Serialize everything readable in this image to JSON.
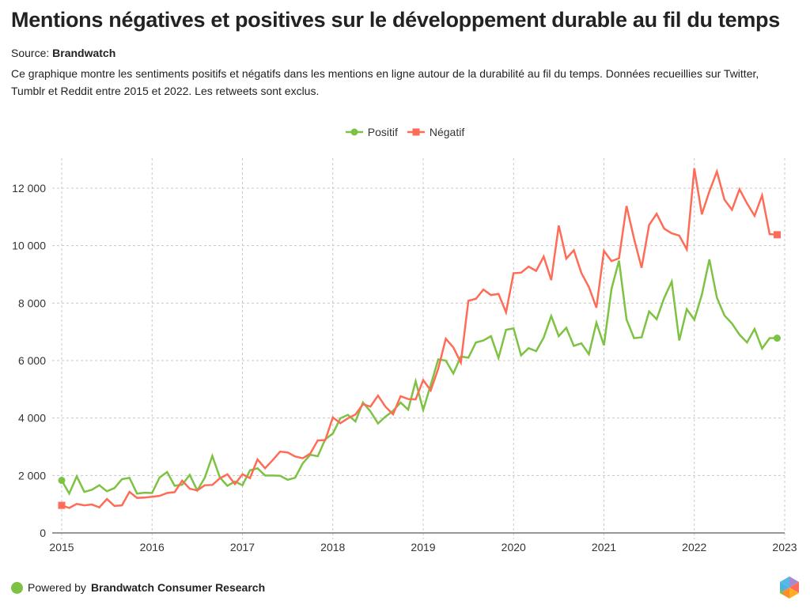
{
  "header": {
    "title": "Mentions négatives et positives sur le développement durable au fil du temps",
    "source_label": "Source:",
    "source_name": "Brandwatch",
    "description": "Ce graphique montre les sentiments positifs et négatifs dans les mentions en ligne autour de la durabilité au fil du temps. Données recueillies sur Twitter, Tumblr et Reddit entre 2015 et 2022. Les retweets sont exclus."
  },
  "footer": {
    "powered_by": "Powered by",
    "brand": "Brandwatch Consumer Research"
  },
  "chart_data": {
    "type": "line",
    "title": "Mentions négatives et positives sur le développement durable au fil du temps",
    "xlabel": "",
    "ylabel": "",
    "x_start": "2015-01",
    "x_frequency": "monthly",
    "x_ticks": [
      "2015",
      "2016",
      "2017",
      "2018",
      "2019",
      "2020",
      "2021",
      "2022",
      "2023"
    ],
    "xlim": [
      2015,
      2023
    ],
    "y_ticks": [
      0,
      2000,
      4000,
      6000,
      8000,
      10000,
      12000
    ],
    "y_tick_labels": [
      "0",
      "2 000",
      "4 000",
      "6 000",
      "8 000",
      "10 000",
      "12 000"
    ],
    "ylim": [
      0,
      12800
    ],
    "grid": true,
    "legend_position": "top-center",
    "series": [
      {
        "name": "Positif",
        "color": "#7dc242",
        "marker": "circle",
        "values": [
          1830,
          1370,
          1970,
          1430,
          1500,
          1660,
          1450,
          1560,
          1870,
          1920,
          1370,
          1400,
          1390,
          1930,
          2120,
          1640,
          1680,
          2020,
          1480,
          1920,
          2680,
          1930,
          1640,
          1790,
          1660,
          2180,
          2250,
          2000,
          2000,
          1990,
          1850,
          1920,
          2420,
          2720,
          2670,
          3260,
          3460,
          3990,
          4110,
          3880,
          4540,
          4230,
          3810,
          4050,
          4250,
          4540,
          4290,
          5280,
          4280,
          5150,
          6040,
          6000,
          5550,
          6140,
          6100,
          6630,
          6700,
          6850,
          6090,
          7070,
          7120,
          6180,
          6430,
          6330,
          6800,
          7550,
          6850,
          7140,
          6510,
          6600,
          6220,
          7320,
          6530,
          8490,
          9480,
          7430,
          6780,
          6810,
          7710,
          7440,
          8180,
          8750,
          6700,
          7790,
          7420,
          8290,
          9520,
          8190,
          7570,
          7290,
          6900,
          6630,
          7100,
          6420,
          6780,
          6780
        ]
      },
      {
        "name": "Négatif",
        "color": "#fe6c57",
        "marker": "square",
        "values": [
          960,
          870,
          1010,
          960,
          990,
          890,
          1180,
          940,
          960,
          1430,
          1220,
          1230,
          1260,
          1290,
          1390,
          1420,
          1820,
          1540,
          1480,
          1660,
          1670,
          1900,
          2040,
          1700,
          2040,
          1910,
          2560,
          2250,
          2530,
          2830,
          2800,
          2660,
          2600,
          2760,
          3220,
          3230,
          4020,
          3820,
          3990,
          4120,
          4480,
          4400,
          4780,
          4390,
          4130,
          4760,
          4660,
          4650,
          5320,
          4960,
          5720,
          6760,
          6460,
          5930,
          8080,
          8150,
          8470,
          8280,
          8320,
          7680,
          9040,
          9060,
          9270,
          9120,
          9620,
          8800,
          10700,
          9550,
          9840,
          9050,
          8560,
          7840,
          9820,
          9460,
          9560,
          11380,
          10240,
          9230,
          10720,
          11110,
          10590,
          10430,
          10350,
          9870,
          12690,
          11090,
          11890,
          12580,
          11600,
          11250,
          11960,
          11470,
          11040,
          11750,
          10400,
          10380
        ]
      }
    ]
  }
}
